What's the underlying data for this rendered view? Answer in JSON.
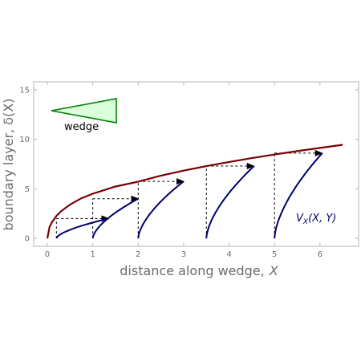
{
  "chart_data": {
    "type": "line",
    "xlabel": "distance along wedge,",
    "xlabel_var": "X",
    "ylabel": "boundary layer, δ(X)",
    "xlim": [
      -0.3,
      6.85
    ],
    "ylim": [
      -0.8,
      15.8
    ],
    "x_ticks": [
      0,
      1,
      2,
      3,
      4,
      5,
      6
    ],
    "y_ticks": [
      0,
      5,
      10,
      15
    ],
    "grid": false,
    "colors": {
      "boundary": "#7a0000",
      "profiles": "#000070",
      "arrows": "#000000",
      "wedge_stroke": "#008000",
      "wedge_fill": "#dcffdc",
      "frame": "#b4b4b4",
      "velocity_label": "#000070"
    },
    "boundary_curve": {
      "name": "δ(X)",
      "x": [
        0,
        0.05,
        0.1,
        0.2,
        0.3,
        0.5,
        0.75,
        1.0,
        1.5,
        2.0,
        2.5,
        3.0,
        3.5,
        4.0,
        4.5,
        5.0,
        5.5,
        6.0,
        6.5
      ],
      "y": [
        0,
        1.15,
        1.62,
        2.26,
        2.73,
        3.41,
        4.05,
        4.5,
        5.23,
        5.73,
        6.33,
        6.84,
        7.29,
        7.71,
        8.1,
        8.46,
        8.8,
        9.13,
        9.44
      ]
    },
    "profiles": [
      {
        "x0": 0.2,
        "height": 2.0,
        "u_max": 1.15
      },
      {
        "x0": 1.0,
        "height": 4.0,
        "u_max": 1.0
      },
      {
        "x0": 2.0,
        "height": 5.75,
        "u_max": 1.0
      },
      {
        "x0": 3.5,
        "height": 7.3,
        "u_max": 1.05
      },
      {
        "x0": 5.0,
        "height": 8.6,
        "u_max": 1.05
      }
    ],
    "annotations": {
      "velocity_label": "V",
      "velocity_label_sub": "X",
      "velocity_label_args": "(X, Y)",
      "wedge_label": "wedge"
    }
  }
}
